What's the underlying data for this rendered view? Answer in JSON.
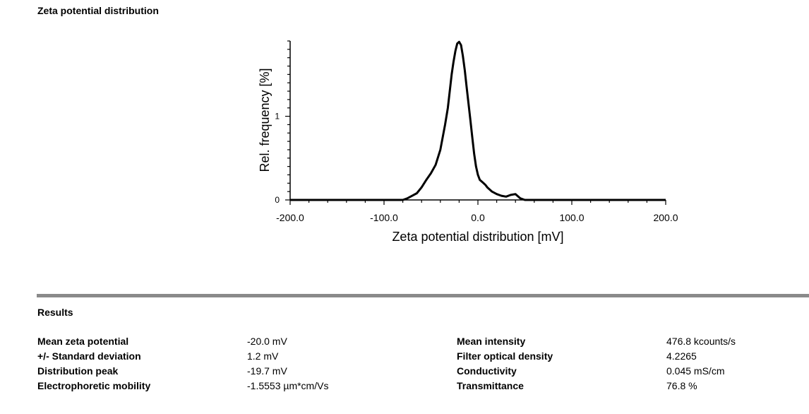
{
  "chart_data": {
    "type": "line",
    "title": "Zeta potential distribution",
    "xlabel": "Zeta potential distribution [mV]",
    "ylabel": "Rel. frequency [%]",
    "xlim": [
      -200,
      200
    ],
    "ylim": [
      0,
      1.9
    ],
    "xticks": [
      -200,
      -100,
      0,
      100,
      200
    ],
    "xtick_labels": [
      "-200.0",
      "-100.0",
      "0.0",
      "100.0",
      "200.0"
    ],
    "yticks": [
      0,
      1
    ],
    "ytick_labels": [
      "0",
      "1"
    ],
    "grid": false,
    "series": [
      {
        "x": [
          -200,
          -100,
          -80,
          -75,
          -70,
          -65,
          -60,
          -55,
          -50,
          -45,
          -40,
          -35,
          -32,
          -30,
          -28,
          -26,
          -24,
          -22,
          -20,
          -18,
          -16,
          -14,
          -12,
          -10,
          -8,
          -6,
          -4,
          -2,
          0,
          2,
          4,
          6,
          8,
          10,
          15,
          20,
          25,
          30,
          35,
          40,
          45,
          50,
          200
        ],
        "y": [
          0,
          0,
          0,
          0.02,
          0.05,
          0.08,
          0.15,
          0.24,
          0.32,
          0.42,
          0.6,
          0.9,
          1.1,
          1.3,
          1.5,
          1.65,
          1.78,
          1.87,
          1.89,
          1.85,
          1.72,
          1.55,
          1.35,
          1.15,
          0.95,
          0.75,
          0.55,
          0.4,
          0.3,
          0.24,
          0.22,
          0.2,
          0.18,
          0.15,
          0.1,
          0.07,
          0.05,
          0.04,
          0.06,
          0.07,
          0.02,
          0,
          0
        ]
      }
    ]
  },
  "results": {
    "title": "Results",
    "left": [
      {
        "label": "Mean zeta potential",
        "value": "-20.0 mV"
      },
      {
        "label": "+/- Standard deviation",
        "value": "1.2 mV"
      },
      {
        "label": "Distribution peak",
        "value": "-19.7 mV"
      },
      {
        "label": "Electrophoretic mobility",
        "value": "-1.5553 µm*cm/Vs"
      }
    ],
    "right": [
      {
        "label": "Mean intensity",
        "value": "476.8 kcounts/s"
      },
      {
        "label": "Filter optical density",
        "value": "4.2265"
      },
      {
        "label": "Conductivity",
        "value": "0.045 mS/cm"
      },
      {
        "label": "Transmittance",
        "value": "76.8 %"
      }
    ]
  }
}
